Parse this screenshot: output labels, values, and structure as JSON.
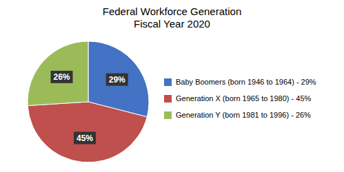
{
  "chart_data": {
    "type": "pie",
    "title": "Federal Workforce Generation\nFiscal Year 2020",
    "categories": [
      "Baby Boomers (born 1946 to 1964) - 29%",
      "Generation X (born 1965 to 1980) - 45%",
      "Generation Y (born 1981 to 1996) - 26%"
    ],
    "values": [
      29,
      45,
      26
    ],
    "value_labels": [
      "29%",
      "45%",
      "26%"
    ],
    "data_labels": true,
    "colors": [
      "#4472C4",
      "#C0504D",
      "#9BBB59"
    ],
    "legend": "right"
  }
}
